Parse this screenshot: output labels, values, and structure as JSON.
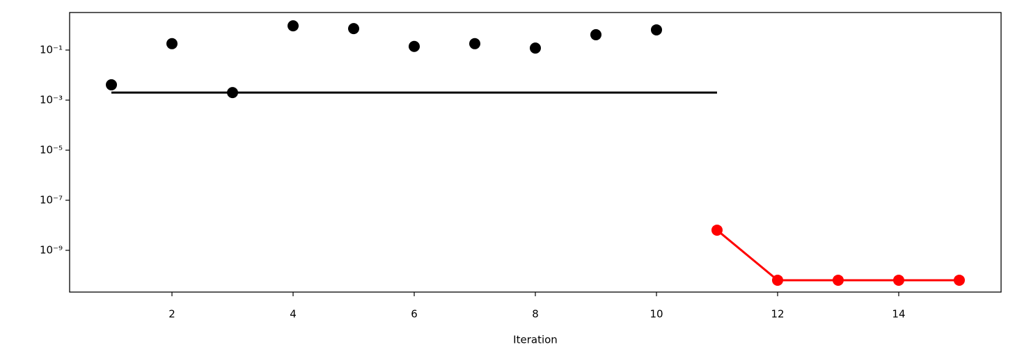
{
  "chart_data": {
    "type": "line",
    "xlabel": "Iteration",
    "yscale": "log",
    "xlim": [
      0.31,
      15.69
    ],
    "ylim": [
      2.15e-11,
      3.16
    ],
    "xticks": [
      2,
      4,
      6,
      8,
      10,
      12,
      14
    ],
    "yticks": [
      {
        "value": 0.1,
        "label": "10⁻¹"
      },
      {
        "value": 0.001,
        "label": "10⁻³"
      },
      {
        "value": 1e-05,
        "label": "10⁻⁵"
      },
      {
        "value": 1e-07,
        "label": "10⁻⁷"
      },
      {
        "value": 1e-09,
        "label": "10⁻⁹"
      }
    ],
    "series": [
      {
        "color": "#000000",
        "style": "markers",
        "x": [
          1,
          2,
          3,
          4,
          5,
          6,
          7,
          8,
          9,
          10
        ],
        "values": [
          0.0041,
          0.18,
          0.002,
          0.93,
          0.72,
          0.14,
          0.18,
          0.12,
          0.41,
          0.64
        ]
      },
      {
        "color": "#000000",
        "style": "line",
        "x": [
          1,
          11
        ],
        "values": [
          0.002,
          0.002
        ]
      },
      {
        "color": "#ff0000",
        "style": "line-markers",
        "x": [
          11,
          12,
          13,
          14,
          15
        ],
        "values": [
          6.4e-09,
          6.4e-11,
          6.4e-11,
          6.4e-11,
          6.4e-11
        ]
      }
    ]
  }
}
